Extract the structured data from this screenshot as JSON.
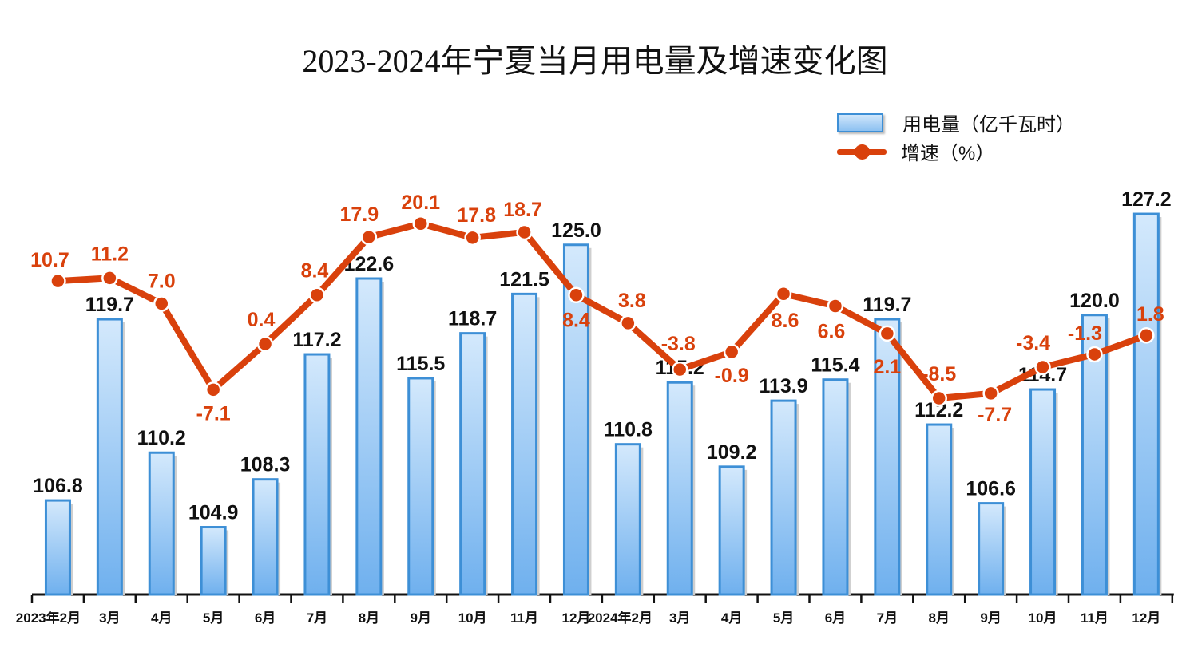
{
  "chart_data": {
    "type": "bar+line",
    "title": "2023-2024年宁夏当月用电量及增速变化图",
    "categories": [
      "2023年2月",
      "3月",
      "4月",
      "5月",
      "6月",
      "7月",
      "8月",
      "9月",
      "10月",
      "11月",
      "12月",
      "2024年2月",
      "3月",
      "4月",
      "5月",
      "6月",
      "7月",
      "8月",
      "9月",
      "10月",
      "11月",
      "12月"
    ],
    "series": [
      {
        "name": "用电量（亿千瓦时）",
        "type": "bar",
        "color": "#3d8fd6",
        "values": [
          106.8,
          119.7,
          110.2,
          104.9,
          108.3,
          117.2,
          122.6,
          115.5,
          118.7,
          121.5,
          125.0,
          110.8,
          115.2,
          109.2,
          113.9,
          115.4,
          119.7,
          112.2,
          106.6,
          114.7,
          120.0,
          127.2
        ]
      },
      {
        "name": "增速（%）",
        "type": "line",
        "color": "#d9410c",
        "values": [
          10.7,
          11.2,
          7.0,
          -7.1,
          0.4,
          8.4,
          17.9,
          20.1,
          17.8,
          18.7,
          8.4,
          3.8,
          -3.8,
          -0.9,
          8.6,
          6.6,
          2.1,
          -8.5,
          -7.7,
          -3.4,
          -1.3,
          1.8
        ]
      }
    ],
    "bar_axis_range": [
      100,
      128
    ],
    "line_axis_range": [
      -14,
      23
    ],
    "legend": "top-right",
    "grid": false
  }
}
